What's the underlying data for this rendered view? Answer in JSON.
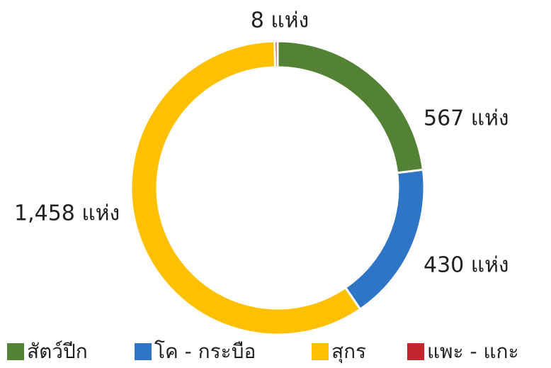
{
  "chart_data": {
    "type": "donut",
    "categories": [
      "สัตว์ปีก",
      "โค - กระบือ",
      "สุกร",
      "แพะ - แกะ"
    ],
    "values": [
      567,
      430,
      1458,
      8
    ],
    "value_labels": [
      "567 แห่ง",
      "430 แห่ง",
      "1,458 แห่ง",
      "8 แห่ง"
    ],
    "colors": [
      "#548235",
      "#2e75c6",
      "#ffc000",
      "#c0282d"
    ],
    "legend": "bottom"
  }
}
